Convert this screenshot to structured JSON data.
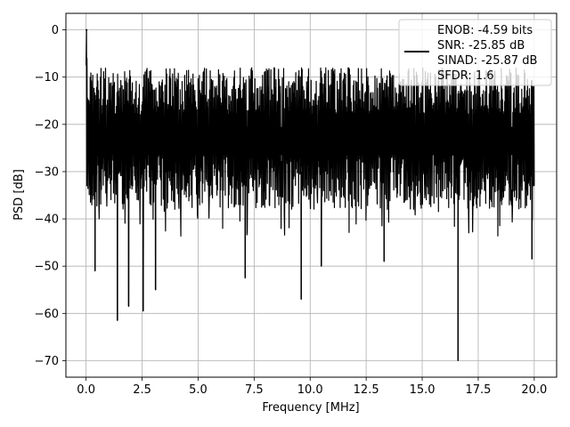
{
  "chart_data": {
    "type": "line",
    "title": "",
    "xlabel": "Frequency [MHz]",
    "ylabel": "PSD [dB]",
    "xlim": [
      -0.9,
      21.0
    ],
    "ylim": [
      -73.5,
      3.5
    ],
    "grid": true,
    "xticks": [
      0.0,
      2.5,
      5.0,
      7.5,
      10.0,
      12.5,
      15.0,
      17.5,
      20.0
    ],
    "xtick_labels": [
      "0.0",
      "2.5",
      "5.0",
      "7.5",
      "10.0",
      "12.5",
      "15.0",
      "17.5",
      "20.0"
    ],
    "yticks": [
      0,
      -10,
      -20,
      -30,
      -40,
      -50,
      -60,
      -70
    ],
    "ytick_labels": [
      "0",
      "−10",
      "−20",
      "−30",
      "−40",
      "−50",
      "−60",
      "−70"
    ],
    "legend": {
      "placement": "top-right",
      "lines": [
        "ENOB: -4.59 bits",
        "SNR: -25.85 dB",
        "SINAD: -25.87 dB",
        "SFDR: 1.6"
      ]
    },
    "series": [
      {
        "color": "#000000",
        "x_range": [
          0.0,
          20.0
        ],
        "noise_band": [
          -35,
          -10
        ],
        "peak": {
          "x": 0.02,
          "y": 0.0
        },
        "dips": [
          {
            "x": 0.4,
            "y": -51
          },
          {
            "x": 1.4,
            "y": -61.5
          },
          {
            "x": 1.9,
            "y": -58.5
          },
          {
            "x": 2.55,
            "y": -59.5
          },
          {
            "x": 3.1,
            "y": -55
          },
          {
            "x": 7.1,
            "y": -52.5
          },
          {
            "x": 9.6,
            "y": -57
          },
          {
            "x": 10.5,
            "y": -50
          },
          {
            "x": 13.3,
            "y": -49
          },
          {
            "x": 16.6,
            "y": -70
          },
          {
            "x": 19.9,
            "y": -48.5
          }
        ]
      }
    ]
  }
}
